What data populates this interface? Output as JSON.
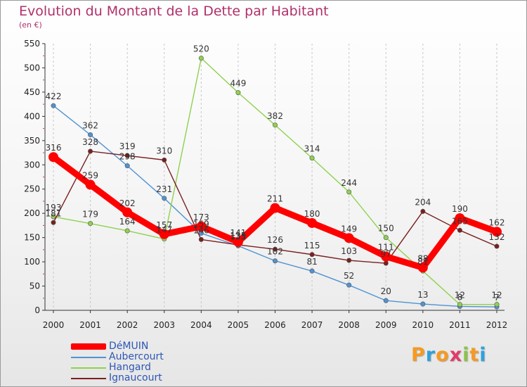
{
  "title": "Evolution du Montant de la Dette par Habitant",
  "subtitle": "(en €)",
  "logo": {
    "letters": [
      "P",
      "r",
      "o",
      "x",
      "i",
      "t",
      "i"
    ],
    "colors": [
      "#f59a23",
      "#2fa0dc",
      "#f59a23",
      "#e23a6c",
      "#8bc34a",
      "#f59a23",
      "#2fa0dc"
    ]
  },
  "chart_data": {
    "type": "line",
    "x": [
      "2000",
      "2001",
      "2002",
      "2003",
      "2004",
      "2005",
      "2006",
      "2007",
      "2008",
      "2009",
      "2010",
      "2011",
      "2012"
    ],
    "ylim": [
      0,
      550
    ],
    "yticks": [
      "0",
      "50",
      "100",
      "150",
      "200",
      "250",
      "300",
      "350",
      "400",
      "450",
      "500",
      "550"
    ],
    "legend_position": "bottom-left",
    "grid": "dashed-vertical",
    "series": [
      {
        "name": "DéMUIN",
        "color": "#ff0000",
        "values": [
          316,
          259,
          202,
          157,
          173,
          141,
          211,
          180,
          149,
          111,
          88,
          190,
          162
        ]
      },
      {
        "name": "Aubercourt",
        "color": "#4f93d2",
        "values": [
          422,
          362,
          298,
          231,
          159,
          133,
          102,
          81,
          52,
          20,
          13,
          8,
          7
        ]
      },
      {
        "name": "Hangard",
        "color": "#8fd14f",
        "values": [
          193,
          179,
          164,
          147,
          520,
          449,
          382,
          314,
          244,
          150,
          81,
          12,
          12
        ]
      },
      {
        "name": "Ignaucourt",
        "color": "#7a1f1f",
        "values": [
          181,
          328,
          319,
          310,
          146,
          135,
          126,
          115,
          103,
          97,
          204,
          165,
          132
        ]
      }
    ],
    "point_labels": [
      [
        "316",
        "259",
        "202",
        "157",
        "173",
        "141",
        "211",
        "180",
        "149",
        "111",
        "88",
        "190",
        "162"
      ],
      [
        "422",
        "362",
        "298",
        "231",
        "159",
        "133",
        "102",
        "81",
        "52",
        "20",
        "13",
        "8",
        "7"
      ],
      [
        "193",
        "179",
        "164",
        "147",
        "520",
        "449",
        "382",
        "314",
        "244",
        "150",
        "81",
        "12",
        "12"
      ],
      [
        "181",
        "328",
        "319",
        "310",
        "146",
        "135",
        "126",
        "115",
        "103",
        "97",
        "204",
        "165",
        "132"
      ]
    ]
  }
}
